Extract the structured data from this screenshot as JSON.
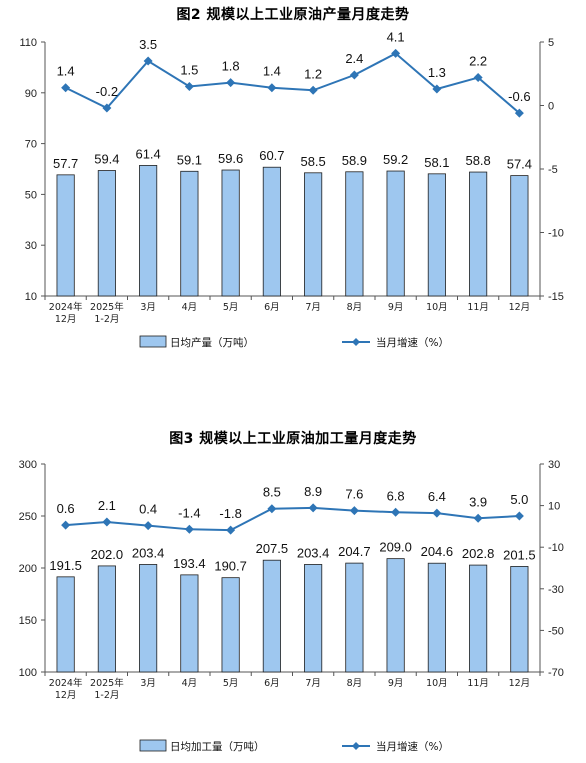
{
  "colors": {
    "bar_fill": "#9ec7ef",
    "bar_stroke": "#1f1f1f",
    "line": "#2e75b6",
    "axis": "#555555"
  },
  "chart_data": [
    {
      "id": "chart2",
      "type": "bar+line",
      "title": "图2 规模以上工业原油产量月度走势",
      "categories": [
        [
          "2024年",
          "12月"
        ],
        [
          "2025年",
          "1-2月"
        ],
        [
          "3月"
        ],
        [
          "4月"
        ],
        [
          "5月"
        ],
        [
          "6月"
        ],
        [
          "7月"
        ],
        [
          "8月"
        ],
        [
          "9月"
        ],
        [
          "10月"
        ],
        [
          "11月"
        ],
        [
          "12月"
        ]
      ],
      "series": [
        {
          "name": "日均产量（万吨）",
          "type": "bar",
          "axis": "left",
          "values": [
            57.7,
            59.4,
            61.4,
            59.1,
            59.6,
            60.7,
            58.5,
            58.9,
            59.2,
            58.1,
            58.8,
            57.4
          ],
          "labels": [
            "57.7",
            "59.4",
            "61.4",
            "59.1",
            "59.6",
            "60.7",
            "58.5",
            "58.9",
            "59.2",
            "58.1",
            "58.8",
            "57.4"
          ]
        },
        {
          "name": "当月增速（%）",
          "type": "line",
          "axis": "right",
          "values": [
            1.4,
            -0.2,
            3.5,
            1.5,
            1.8,
            1.4,
            1.2,
            2.4,
            4.1,
            1.3,
            2.2,
            -0.6
          ],
          "labels": [
            "1.4",
            "-0.2",
            "3.5",
            "1.5",
            "1.8",
            "1.4",
            "1.2",
            "2.4",
            "4.1",
            "1.3",
            "2.2",
            "-0.6"
          ]
        }
      ],
      "y_left": {
        "min": 10,
        "max": 110,
        "ticks": [
          "10",
          "30",
          "50",
          "70",
          "90",
          "110"
        ]
      },
      "y_right": {
        "min": -15,
        "max": 5,
        "ticks": [
          "-15",
          "-10",
          "-5",
          "0",
          "5"
        ]
      },
      "legend_position": "bottom"
    },
    {
      "id": "chart3",
      "type": "bar+line",
      "title": "图3 规模以上工业原油加工量月度走势",
      "categories": [
        [
          "2024年",
          "12月"
        ],
        [
          "2025年",
          "1-2月"
        ],
        [
          "3月"
        ],
        [
          "4月"
        ],
        [
          "5月"
        ],
        [
          "6月"
        ],
        [
          "7月"
        ],
        [
          "8月"
        ],
        [
          "9月"
        ],
        [
          "10月"
        ],
        [
          "11月"
        ],
        [
          "12月"
        ]
      ],
      "series": [
        {
          "name": "日均加工量（万吨）",
          "type": "bar",
          "axis": "left",
          "values": [
            191.5,
            202.0,
            203.4,
            193.4,
            190.7,
            207.5,
            203.4,
            204.7,
            209.0,
            204.6,
            202.8,
            201.5
          ],
          "labels": [
            "191.5",
            "202.0",
            "203.4",
            "193.4",
            "190.7",
            "207.5",
            "203.4",
            "204.7",
            "209.0",
            "204.6",
            "202.8",
            "201.5"
          ]
        },
        {
          "name": "当月增速（%）",
          "type": "line",
          "axis": "right",
          "values": [
            0.6,
            2.1,
            0.4,
            -1.4,
            -1.8,
            8.5,
            8.9,
            7.6,
            6.8,
            6.4,
            3.9,
            5.0
          ],
          "labels": [
            "0.6",
            "2.1",
            "0.4",
            "-1.4",
            "-1.8",
            "8.5",
            "8.9",
            "7.6",
            "6.8",
            "6.4",
            "3.9",
            "5.0"
          ]
        }
      ],
      "y_left": {
        "min": 100,
        "max": 300,
        "ticks": [
          "100",
          "150",
          "200",
          "250",
          "300"
        ]
      },
      "y_right": {
        "min": -70,
        "max": 30,
        "ticks": [
          "-70",
          "-50",
          "-30",
          "-10",
          "10",
          "30"
        ]
      },
      "legend_position": "bottom"
    }
  ]
}
